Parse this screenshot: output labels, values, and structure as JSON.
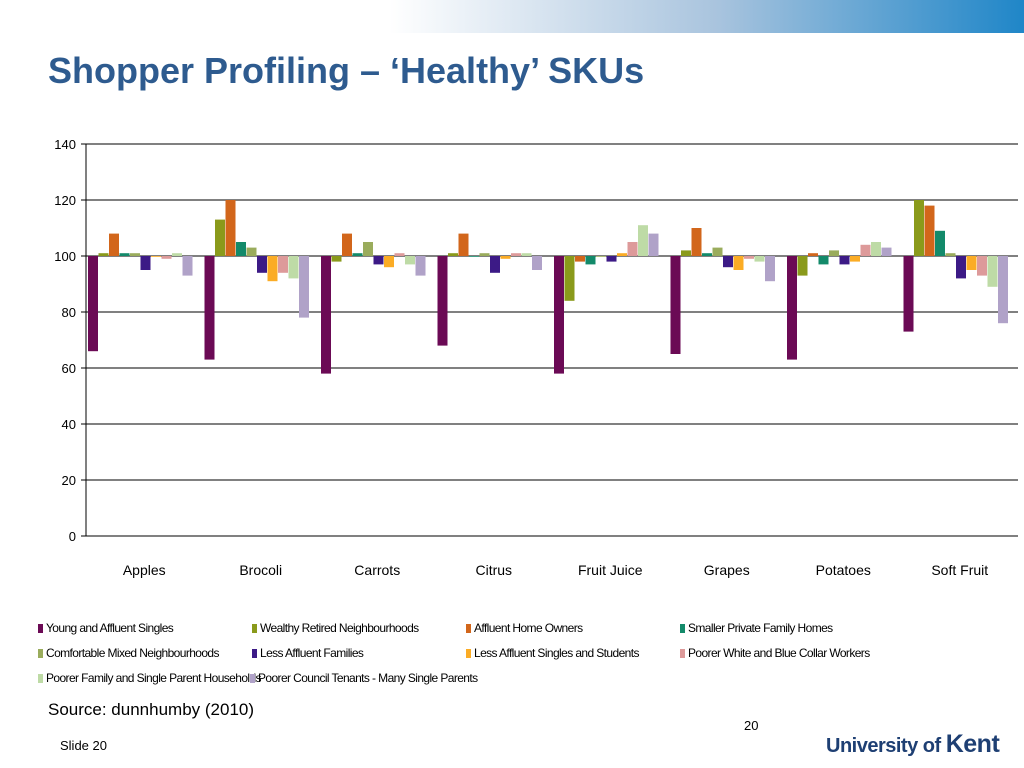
{
  "slide": {
    "title": "Shopper Profiling – ‘Healthy’ SKUs",
    "source": "Source: dunnhumby (2010)",
    "page_number": "20",
    "slide_label": "Slide 20",
    "logo_prefix": "University of",
    "logo_name": "Kent"
  },
  "chart_data": {
    "type": "bar",
    "baseline": 100,
    "ylim": [
      0,
      140
    ],
    "yticks": [
      "0",
      "20",
      "40",
      "60",
      "80",
      "100",
      "120",
      "140"
    ],
    "categories": [
      "Apples",
      "Brocoli",
      "Carrots",
      "Citrus",
      "Fruit Juice",
      "Grapes",
      "Potatoes",
      "Soft Fruit"
    ],
    "legend_placement": "bottom",
    "grid": true,
    "series": [
      {
        "name": "Young and Affluent Singles",
        "color": "#6b0a55",
        "values": [
          66,
          63,
          58,
          68,
          58,
          65,
          63,
          73
        ]
      },
      {
        "name": "Wealthy Retired Neighbourhoods",
        "color": "#8a9a1b",
        "values": [
          101,
          113,
          98,
          101,
          84,
          102,
          93,
          120
        ]
      },
      {
        "name": "Affluent Home Owners",
        "color": "#d2661b",
        "values": [
          108,
          120,
          108,
          108,
          98,
          110,
          101,
          118
        ]
      },
      {
        "name": "Smaller Private Family Homes",
        "color": "#138a6a",
        "values": [
          101,
          105,
          101,
          100,
          97,
          101,
          97,
          109
        ]
      },
      {
        "name": "Comfortable Mixed Neighbourhoods",
        "color": "#9aac5c",
        "values": [
          101,
          103,
          105,
          101,
          100,
          103,
          102,
          101
        ]
      },
      {
        "name": "Less Affluent Families",
        "color": "#3c1a86",
        "values": [
          95,
          94,
          97,
          94,
          98,
          96,
          97,
          92
        ]
      },
      {
        "name": "Less Affluent Singles and Students",
        "color": "#fbac25",
        "values": [
          100,
          91,
          96,
          99,
          101,
          95,
          98,
          95
        ]
      },
      {
        "name": "Poorer White and Blue Collar Workers",
        "color": "#dd9a9a",
        "values": [
          99,
          94,
          101,
          101,
          105,
          99,
          104,
          93
        ]
      },
      {
        "name": "Poorer Family and Single Parent Households",
        "color": "#bedba6",
        "values": [
          101,
          92,
          97,
          101,
          111,
          98,
          105,
          89
        ]
      },
      {
        "name": "Poorer Council Tenants - Many Single Parents",
        "color": "#b0a2c8",
        "values": [
          93,
          78,
          93,
          95,
          108,
          91,
          103,
          76
        ]
      }
    ]
  }
}
